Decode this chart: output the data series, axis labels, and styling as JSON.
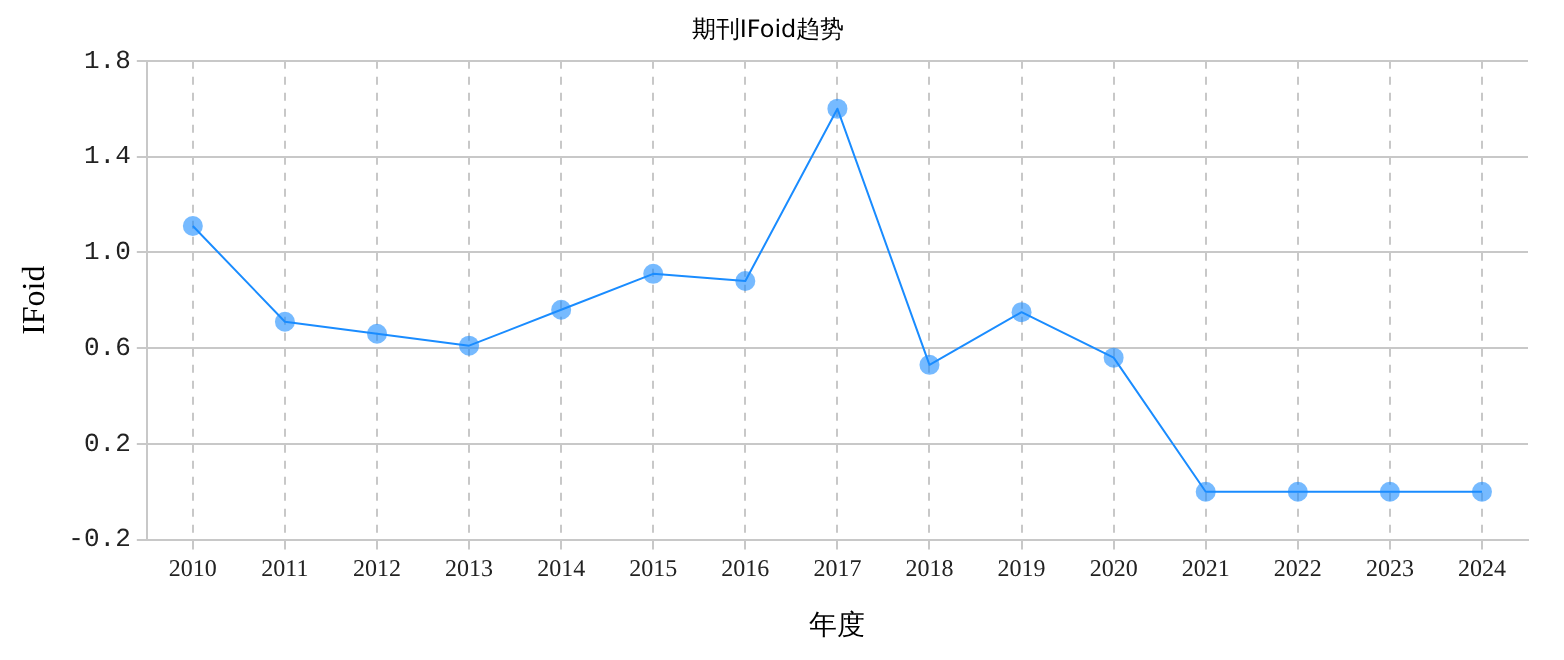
{
  "chart_data": {
    "type": "line",
    "title": "期刊IFoid趋势",
    "xlabel": "年度",
    "ylabel": "IFoid",
    "categories": [
      "2010",
      "2011",
      "2012",
      "2013",
      "2014",
      "2015",
      "2016",
      "2017",
      "2018",
      "2019",
      "2020",
      "2021",
      "2022",
      "2023",
      "2024"
    ],
    "series": [
      {
        "color": "#1a8cff",
        "values": [
          1.11,
          0.71,
          0.66,
          0.61,
          0.76,
          0.91,
          0.88,
          1.6,
          0.53,
          0.75,
          0.56,
          0,
          0,
          0,
          0
        ]
      }
    ],
    "ylim": [
      -0.2,
      1.8
    ],
    "yticks": [
      -0.2,
      0.2,
      0.6,
      {
        "value": 1,
        "label": "1.0"
      },
      1.4,
      1.8
    ],
    "grid": true,
    "marker": "circle",
    "line_style": "solid",
    "legend": false
  }
}
